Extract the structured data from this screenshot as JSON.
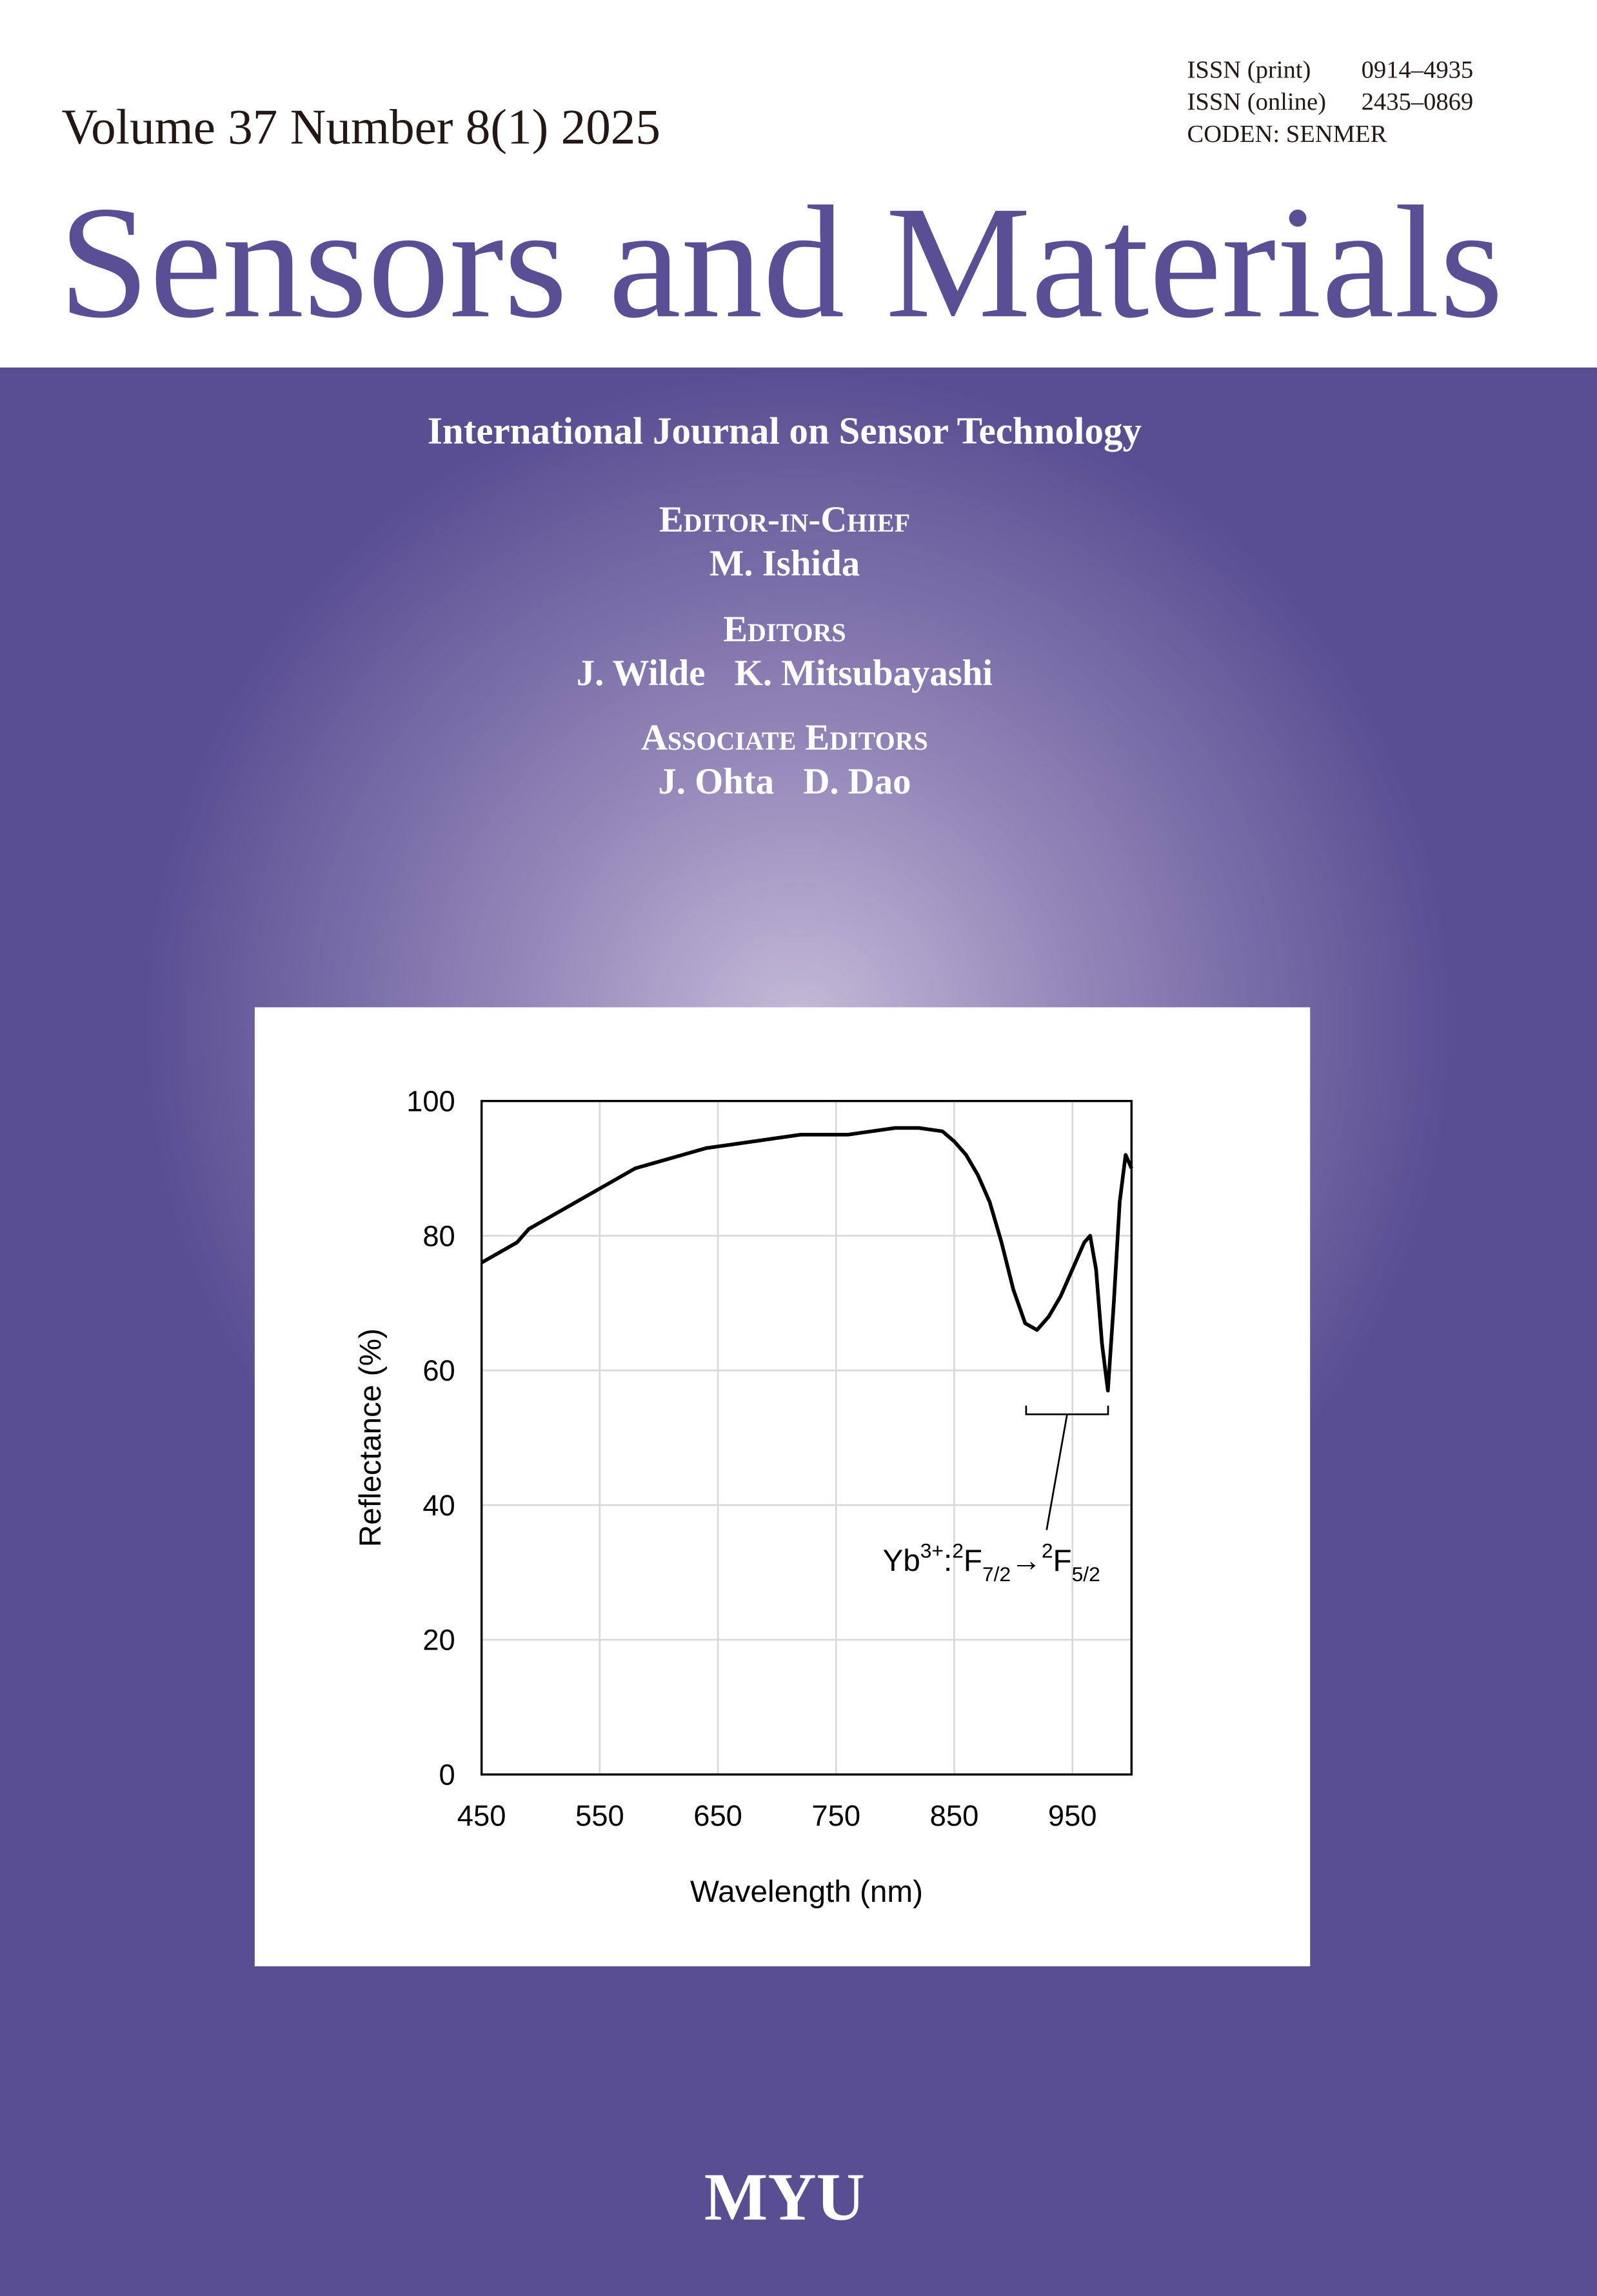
{
  "header": {
    "volume": "Volume 37 Number 8(1) 2025",
    "identifiers": [
      {
        "label": "ISSN (print)",
        "value": "0914–4935"
      },
      {
        "label": "ISSN (online)",
        "value": "2435–0869"
      },
      {
        "label": "CODEN: SENMER"
      }
    ],
    "title": "Sensors and Materials"
  },
  "subtitle": "International Journal on Sensor Technology",
  "editorial_board": [
    {
      "role": "Editor-in-Chief",
      "names": [
        "M. Ishida"
      ]
    },
    {
      "role": "Editors",
      "names": [
        "J. Wilde",
        "K. Mitsubayashi"
      ]
    },
    {
      "role": "Associate Editors",
      "names": [
        "J. Ohta",
        "D. Dao"
      ]
    }
  ],
  "chart_data": {
    "type": "line",
    "x_label": "Wavelength (nm)",
    "y_label": "Reflectance (%)",
    "x": [
      450,
      460,
      470,
      480,
      490,
      500,
      520,
      540,
      560,
      580,
      600,
      620,
      640,
      660,
      680,
      700,
      720,
      740,
      760,
      780,
      800,
      820,
      840,
      850,
      860,
      870,
      880,
      890,
      900,
      910,
      920,
      930,
      940,
      950,
      960,
      965,
      970,
      975,
      980,
      985,
      990,
      995,
      1000
    ],
    "series": [
      {
        "color": "#000000",
        "values": [
          76,
          77,
          78,
          79,
          81,
          82,
          84,
          86,
          88,
          90,
          91,
          92,
          93,
          93.5,
          94,
          94.5,
          95,
          95,
          95,
          95.5,
          96,
          96,
          95.5,
          94,
          92,
          89,
          85,
          79,
          72,
          67,
          66,
          68,
          71,
          75,
          79,
          80,
          75,
          64,
          57,
          70,
          85,
          92,
          90
        ]
      }
    ],
    "xlim": [
      450,
      1000
    ],
    "xticks": [
      450,
      550,
      650,
      750,
      850,
      950
    ],
    "ylim": [
      0,
      100
    ],
    "yticks": [
      0,
      20,
      40,
      60,
      80,
      100
    ],
    "grid": true,
    "annotation": [
      {
        "text": "Yb"
      },
      {
        "text": "3+",
        "baseline": "super"
      },
      {
        "text": ":"
      },
      {
        "text": "2",
        "baseline": "super"
      },
      {
        "text": "F"
      },
      {
        "text": "7/2",
        "baseline": "sub"
      },
      {
        "text": "→"
      },
      {
        "text": "2",
        "baseline": "super"
      },
      {
        "text": "F"
      },
      {
        "text": "5/2",
        "baseline": "sub"
      }
    ]
  },
  "publisher": "MYU"
}
